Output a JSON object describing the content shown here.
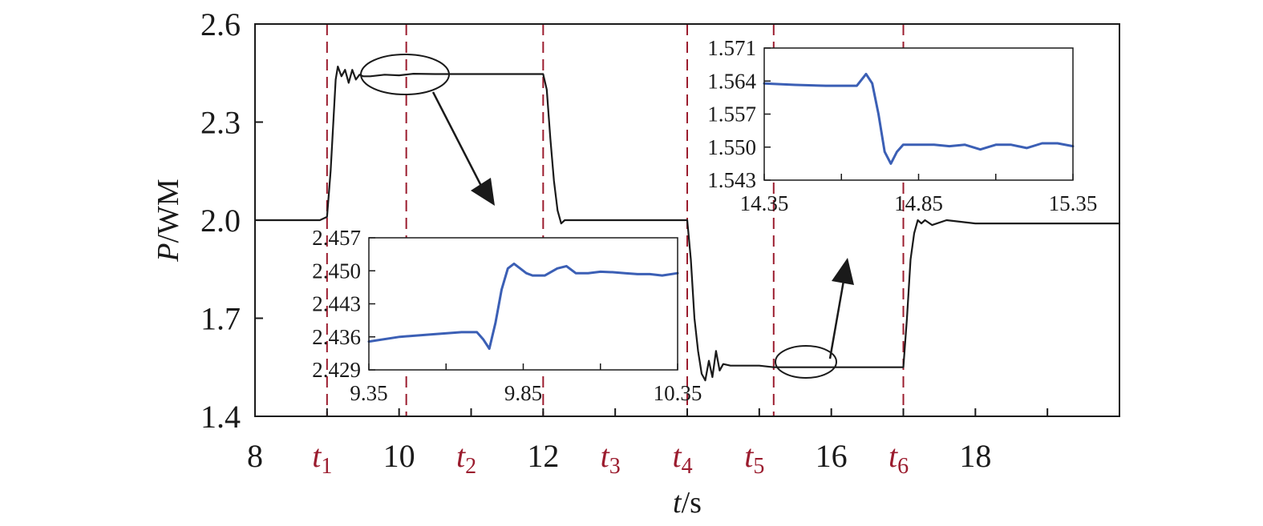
{
  "chart_data": {
    "type": "line",
    "main": {
      "xlabel_italic": "t",
      "xlabel_rest": "/s",
      "ylabel_italic": "P",
      "ylabel_rest": "/WM",
      "xlim": [
        8,
        20
      ],
      "ylim": [
        1.4,
        2.6
      ],
      "x_ticks": [
        8,
        10,
        12,
        16,
        18
      ],
      "y_ticks": [
        "1.4",
        "1.7",
        "2.0",
        "2.3",
        "2.6"
      ],
      "marker_labels": [
        {
          "base": "t",
          "sub": "1",
          "x": 9
        },
        {
          "base": "t",
          "sub": "2",
          "x": 11
        },
        {
          "base": "t",
          "sub": "3",
          "x": 13
        },
        {
          "base": "t",
          "sub": "4",
          "x": 14
        },
        {
          "base": "t",
          "sub": "5",
          "x": 15
        },
        {
          "base": "t",
          "sub": "6",
          "x": 17
        }
      ],
      "dashed_lines_x": [
        9,
        10.1,
        12,
        14,
        15.2,
        17
      ],
      "line_color": "#1a1a1a",
      "marker_color": "#9b1c2e",
      "series": [
        {
          "x": [
            8,
            8.9,
            9.0,
            9.05,
            9.1,
            9.12,
            9.15,
            9.2,
            9.25,
            9.3,
            9.35,
            9.4,
            9.45,
            9.5,
            9.6,
            9.8,
            10.0,
            10.2,
            10.5,
            11.0,
            11.5,
            12.0,
            12.05,
            12.1,
            12.15,
            12.2,
            12.25,
            12.3,
            12.35,
            12.4,
            13.0,
            13.5,
            13.9,
            14.0,
            14.05,
            14.1,
            14.15,
            14.2,
            14.25,
            14.3,
            14.35,
            14.4,
            14.45,
            14.5,
            14.6,
            14.8,
            15.0,
            15.2,
            15.5,
            16.0,
            16.5,
            16.97,
            17.0,
            17.05,
            17.1,
            17.15,
            17.2,
            17.25,
            17.3,
            17.4,
            17.6,
            18.0,
            19.0,
            20.0
          ],
          "y": [
            2.0,
            2.0,
            2.01,
            2.15,
            2.35,
            2.43,
            2.47,
            2.44,
            2.46,
            2.42,
            2.46,
            2.43,
            2.445,
            2.44,
            2.44,
            2.445,
            2.443,
            2.448,
            2.447,
            2.447,
            2.447,
            2.447,
            2.4,
            2.25,
            2.12,
            2.03,
            1.99,
            2.0,
            2.0,
            2.0,
            2.0,
            2.0,
            2.0,
            2.0,
            1.88,
            1.7,
            1.6,
            1.53,
            1.51,
            1.57,
            1.52,
            1.6,
            1.54,
            1.56,
            1.555,
            1.555,
            1.555,
            1.55,
            1.55,
            1.55,
            1.55,
            1.55,
            1.55,
            1.7,
            1.88,
            1.96,
            2.0,
            1.99,
            2.0,
            1.985,
            2.0,
            1.99,
            1.99,
            1.99
          ]
        }
      ]
    },
    "inset_left": {
      "xlim": [
        9.35,
        10.35
      ],
      "ylim": [
        2.429,
        2.457
      ],
      "x_tick_labels": [
        {
          "x": 9.35,
          "label": "9.35"
        },
        {
          "x": 9.85,
          "label": "9.85"
        },
        {
          "x": 10.35,
          "label": "10.35"
        }
      ],
      "x_minor_ticks": [
        9.6,
        10.1
      ],
      "y_ticks": [
        "2.429",
        "2.436",
        "2.443",
        "2.450",
        "2.457"
      ],
      "line_color": "#3b5fb5",
      "series": [
        {
          "x": [
            9.35,
            9.45,
            9.55,
            9.65,
            9.7,
            9.72,
            9.74,
            9.76,
            9.78,
            9.8,
            9.82,
            9.84,
            9.86,
            9.88,
            9.92,
            9.96,
            9.99,
            10.02,
            10.06,
            10.1,
            10.14,
            10.18,
            10.22,
            10.26,
            10.3,
            10.35
          ],
          "y": [
            2.435,
            2.436,
            2.4365,
            2.437,
            2.437,
            2.4355,
            2.4335,
            2.439,
            2.446,
            2.4505,
            2.4515,
            2.4505,
            2.4495,
            2.449,
            2.449,
            2.4505,
            2.451,
            2.4495,
            2.4495,
            2.4498,
            2.4497,
            2.4495,
            2.4493,
            2.4493,
            2.449,
            2.4495
          ]
        }
      ]
    },
    "inset_right": {
      "xlim": [
        14.35,
        15.35
      ],
      "ylim": [
        1.543,
        1.571
      ],
      "x_tick_labels": [
        {
          "x": 14.35,
          "label": "14.35"
        },
        {
          "x": 14.85,
          "label": "14.85"
        },
        {
          "x": 15.35,
          "label": "15.35"
        }
      ],
      "x_minor_ticks": [
        14.6,
        15.1
      ],
      "y_ticks": [
        "1.543",
        "1.550",
        "1.557",
        "1.564",
        "1.571"
      ],
      "line_color": "#3b5fb5",
      "series": [
        {
          "x": [
            14.35,
            14.45,
            14.55,
            14.65,
            14.68,
            14.7,
            14.72,
            14.74,
            14.76,
            14.78,
            14.8,
            14.82,
            14.85,
            14.9,
            14.95,
            15.0,
            15.05,
            15.1,
            15.15,
            15.2,
            15.25,
            15.3,
            15.35
          ],
          "y": [
            1.5635,
            1.5632,
            1.563,
            1.563,
            1.5655,
            1.5635,
            1.557,
            1.549,
            1.5465,
            1.549,
            1.5505,
            1.5505,
            1.5505,
            1.5505,
            1.5502,
            1.5505,
            1.5495,
            1.5505,
            1.5505,
            1.5498,
            1.5508,
            1.5508,
            1.5502
          ]
        }
      ]
    }
  }
}
